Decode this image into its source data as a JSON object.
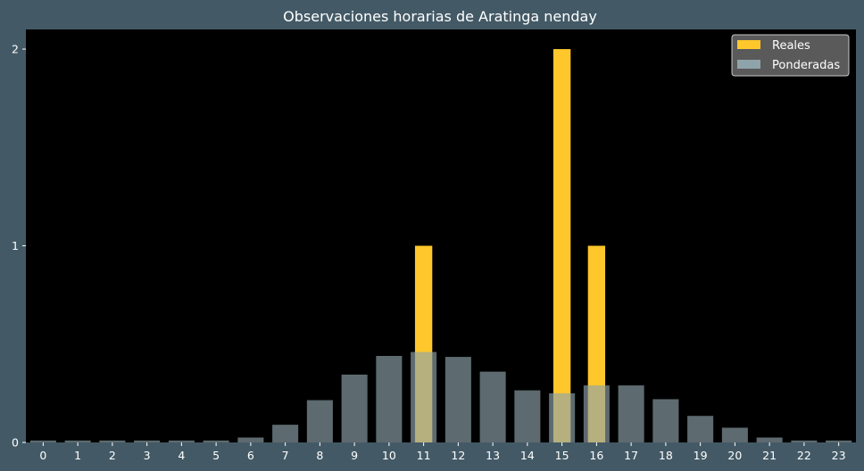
{
  "chart_data": {
    "type": "bar",
    "title": "Observaciones horarias de Aratinga nenday",
    "xlabel": "",
    "ylabel": "",
    "categories": [
      "0",
      "1",
      "2",
      "3",
      "4",
      "5",
      "6",
      "7",
      "8",
      "9",
      "10",
      "11",
      "12",
      "13",
      "14",
      "15",
      "16",
      "17",
      "18",
      "19",
      "20",
      "21",
      "22",
      "23"
    ],
    "series": [
      {
        "name": "Reales",
        "color": "#ffc72c",
        "values": [
          0,
          0,
          0,
          0,
          0,
          0,
          0,
          0,
          0,
          0,
          0,
          1,
          0,
          0,
          0,
          2,
          1,
          0,
          0,
          0,
          0,
          0,
          0,
          0
        ]
      },
      {
        "name": "Ponderadas",
        "color": "#8fa3ab",
        "values": [
          0.01,
          0.01,
          0.01,
          0.01,
          0.01,
          0.01,
          0.025,
          0.09,
          0.215,
          0.345,
          0.44,
          0.46,
          0.435,
          0.36,
          0.265,
          0.25,
          0.29,
          0.29,
          0.22,
          0.135,
          0.075,
          0.025,
          0.01,
          0.01
        ]
      }
    ],
    "yticks": [
      0,
      1,
      2
    ],
    "ylim": [
      0,
      2.1
    ],
    "grid": false,
    "legend_position": "top-right",
    "background": "#000000",
    "figure_background": "#435a66"
  }
}
